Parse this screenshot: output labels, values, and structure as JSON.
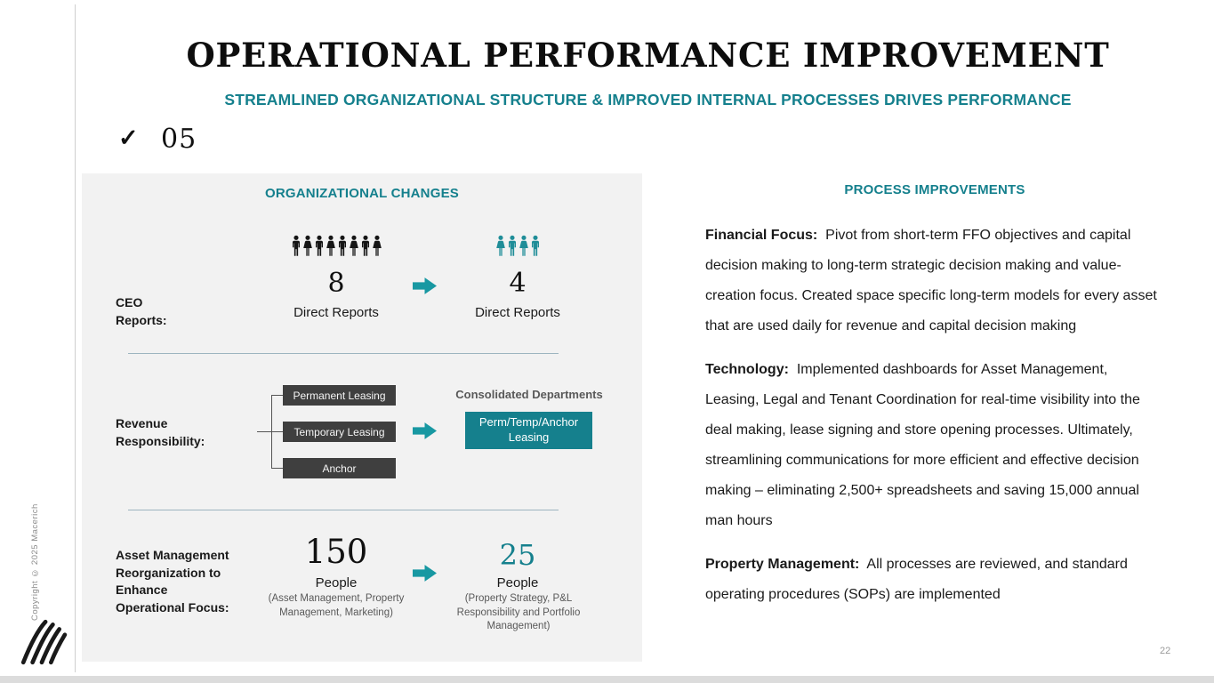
{
  "header": {
    "title": "OPERATIONAL PERFORMANCE IMPROVEMENT",
    "subtitle": "STREAMLINED ORGANIZATIONAL STRUCTURE & IMPROVED INTERNAL PROCESSES DRIVES PERFORMANCE",
    "checkmark": "✓",
    "badge": "05"
  },
  "org": {
    "title": "ORGANIZATIONAL CHANGES",
    "ceo": {
      "label": "CEO\nReports:",
      "before": {
        "count": 8,
        "value": "8",
        "caption": "Direct Reports"
      },
      "after": {
        "count": 4,
        "value": "4",
        "caption": "Direct Reports"
      }
    },
    "revenue": {
      "label": "Revenue\nResponsibility:",
      "departments": [
        "Permanent Leasing",
        "Temporary Leasing",
        "Anchor"
      ],
      "consolidated_title": "Consolidated Departments",
      "consolidated_box": "Perm/Temp/Anchor Leasing"
    },
    "asset": {
      "label": "Asset Management\nReorganization to\nEnhance\nOperational Focus:",
      "before": {
        "value": "150",
        "caption": "People",
        "detail": "(Asset Management, Property Management, Marketing)"
      },
      "after": {
        "value": "25",
        "caption": "People",
        "detail": "(Property Strategy, P&L Responsibility and Portfolio Management)"
      }
    }
  },
  "process": {
    "title": "PROCESS IMPROVEMENTS",
    "items": [
      {
        "label": "Financial Focus:",
        "text": "Pivot from short-term FFO objectives and capital decision making to long-term strategic decision making and value-creation focus. Created space specific long-term models for every asset that are used daily for revenue and capital decision making"
      },
      {
        "label": "Technology:",
        "text": "Implemented dashboards for Asset Management, Leasing, Legal and Tenant Coordination for real-time visibility into the deal making, lease signing and store opening processes. Ultimately, streamlining communications for more efficient and effective decision making – eliminating 2,500+ spreadsheets and saving 15,000 annual man hours"
      },
      {
        "label": "Property Management:",
        "text": "All processes are reviewed, and standard operating procedures (SOPs) are implemented"
      }
    ]
  },
  "footer": {
    "copyright": "Copyright © 2025 Macerich",
    "page_number": "22"
  },
  "colors": {
    "teal": "#15808d",
    "teal_arrow": "#1898a2",
    "dark_box": "#3f3f3f",
    "panel_bg": "#f2f2f2",
    "people_black": "#151515",
    "people_teal": "#1f8d98"
  }
}
